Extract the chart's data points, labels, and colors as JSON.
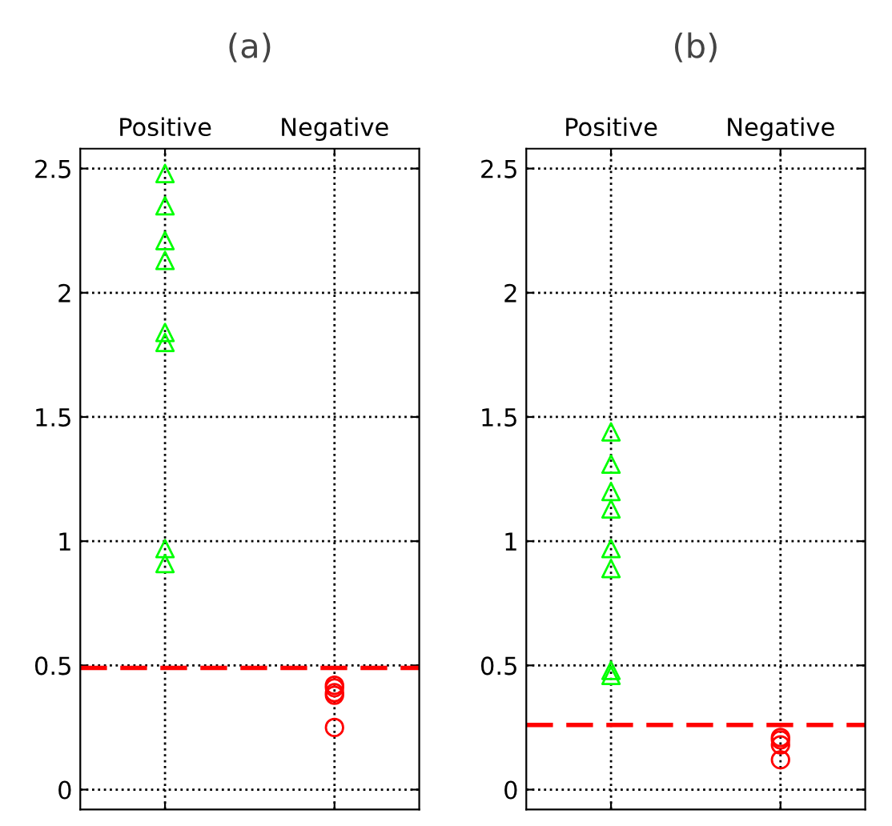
{
  "chart_data": [
    {
      "type": "scatter",
      "title": "(a)",
      "categories": [
        "Positive",
        "Negative"
      ],
      "ylim": [
        -0.08,
        2.58
      ],
      "yticks": [
        0,
        0.5,
        1,
        1.5,
        2,
        2.5
      ],
      "grid": true,
      "series": [
        {
          "color": "#00ff00",
          "marker": "triangle",
          "x": [
            "Positive",
            "Positive",
            "Positive",
            "Positive",
            "Positive",
            "Positive",
            "Positive",
            "Positive"
          ],
          "values": [
            2.48,
            2.35,
            2.21,
            2.13,
            1.84,
            1.8,
            0.97,
            0.91
          ]
        },
        {
          "color": "#ff0000",
          "marker": "circle",
          "x": [
            "Negative",
            "Negative",
            "Negative",
            "Negative",
            "Negative"
          ],
          "values": [
            0.42,
            0.41,
            0.39,
            0.38,
            0.25
          ]
        }
      ],
      "ref_lines": [
        {
          "axis": "y",
          "value": 0.49,
          "color": "#ff0000",
          "line_style": "dashed"
        }
      ]
    },
    {
      "type": "scatter",
      "title": "(b)",
      "categories": [
        "Positive",
        "Negative"
      ],
      "ylim": [
        -0.08,
        2.58
      ],
      "yticks": [
        0,
        0.5,
        1,
        1.5,
        2,
        2.5
      ],
      "grid": true,
      "series": [
        {
          "color": "#00ff00",
          "marker": "triangle",
          "x": [
            "Positive",
            "Positive",
            "Positive",
            "Positive",
            "Positive",
            "Positive",
            "Positive",
            "Positive"
          ],
          "values": [
            1.44,
            1.31,
            1.2,
            1.13,
            0.97,
            0.89,
            0.48,
            0.46
          ]
        },
        {
          "color": "#ff0000",
          "marker": "circle",
          "x": [
            "Negative",
            "Negative",
            "Negative",
            "Negative"
          ],
          "values": [
            0.21,
            0.2,
            0.18,
            0.12
          ]
        }
      ],
      "ref_lines": [
        {
          "axis": "y",
          "value": 0.26,
          "color": "#ff0000",
          "line_style": "dashed"
        }
      ]
    }
  ]
}
